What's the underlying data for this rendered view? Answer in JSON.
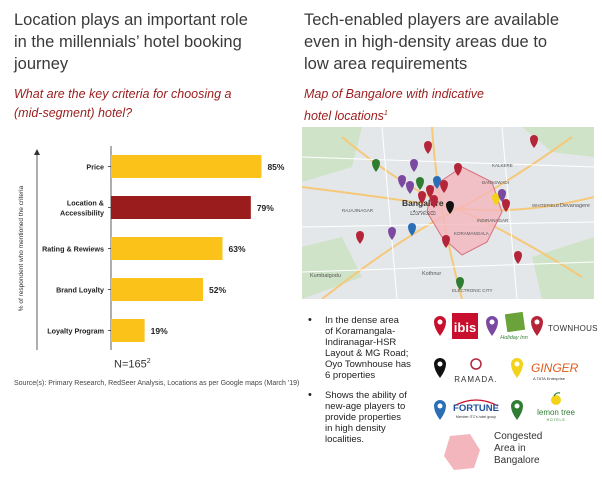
{
  "left": {
    "heading_lines": [
      "Location plays an important role",
      "in the millennials’ hotel booking",
      "journey"
    ],
    "question_lines": [
      "What are the key criteria for choosing a",
      "(mid-segment) hotel?"
    ],
    "n_label": "N=165",
    "n_sup": "2",
    "source": "Source(s): Primary Research, RedSeer Analysis, Locations as per Google maps (March '19)"
  },
  "right": {
    "heading_lines": [
      "Tech-enabled players are available",
      "even in high-density areas due to",
      "low area requirements"
    ],
    "map_title_lines": [
      "Map of Bangalore with indicative",
      "hotel locations"
    ],
    "map_title_sup": "1",
    "bullet_1_lines": [
      "In the dense area",
      "of Koramangala-",
      "Indiranagar-HSR",
      "Layout & MG Road;",
      "Oyo Townhouse has",
      "6 properties"
    ],
    "bullet_2_lines": [
      "Shows the ability of",
      "new-age players to",
      "provide properties",
      "in high density",
      "localities."
    ],
    "bullet_symbol": "•",
    "legend_lines": [
      "Congested",
      "Area in",
      "Bangalore"
    ],
    "legend_color": "#f4b6bd"
  },
  "map_labels": {
    "bangalore": "Bangalore",
    "kannada": "ಬೆಂಗಳೂರು",
    "rajajinagar": "RAJAJINAGAR",
    "banaswadi": "BANASWADI",
    "whitefield": "WHITEFIELD",
    "kumbalgodu": "Kumbalgodu",
    "electronic_city": "ELECTRONIC CITY",
    "kalkere": "KALKERE",
    "koramangala": "KORAMANGALA",
    "indiranagar": "INDIRANAGAR",
    "devanahalli": "Devanagere",
    "kotiru": "Kothnur"
  },
  "logos": {
    "ibis": "ibis",
    "holiday_inn": "Holiday Inn",
    "townhouse": "TOWNHOUSE",
    "ramada": "RAMADA.",
    "ginger": "GINGER",
    "ginger_sub": "A TATA Enterprise",
    "fortune": "FORTUNE",
    "fortune_sub": "Member ITC's hotel group",
    "lemontree": "lemon tree",
    "lemontree_sub": "HOTELS"
  },
  "colors": {
    "bar_default": "#fbc21a",
    "bar_highlight": "#9b1c1c",
    "heading": "#3a3a3a",
    "accent_red": "#9b1c1c",
    "pin_red": "#b5253a",
    "pin_purple": "#7b4aa0",
    "pin_green": "#2f7d32",
    "pin_blue": "#2a6fb5",
    "pin_yellow": "#f3d21a",
    "pin_black": "#111111"
  },
  "chart_data": {
    "type": "bar",
    "orientation": "horizontal",
    "categories": [
      "Price",
      "Location & Accessibility",
      "Rating & Rewiews",
      "Brand Loyalty",
      "Loyalty Program"
    ],
    "category_lines": [
      [
        "Price"
      ],
      [
        "Location &",
        "Accessibility"
      ],
      [
        "Rating & Rewiews"
      ],
      [
        "Brand Loyalty"
      ],
      [
        "Loyalty Program"
      ]
    ],
    "values": [
      85,
      79,
      63,
      52,
      19
    ],
    "value_labels": [
      "85%",
      "79%",
      "63%",
      "52%",
      "19%"
    ],
    "highlight_index": 1,
    "ylabel": "% of respondent who mentioned the criteria",
    "xlim": [
      0,
      100
    ],
    "grid": false,
    "legend": "none"
  }
}
